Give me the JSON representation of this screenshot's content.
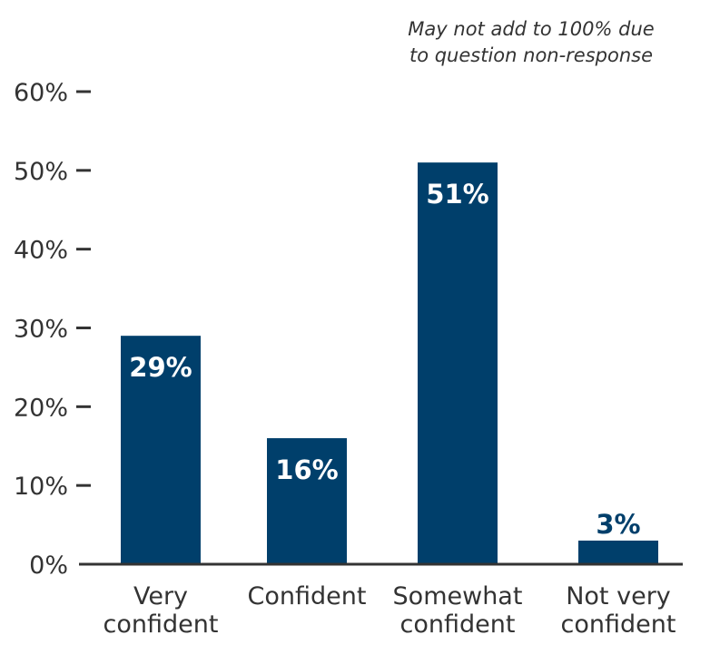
{
  "note": {
    "line1": "May not add to 100% due",
    "line2": "to question non-response"
  },
  "colors": {
    "bar": "#003f6b",
    "axis": "#333333",
    "label_inside": "#ffffff",
    "label_outside": "#003f6b"
  },
  "chart_data": {
    "type": "bar",
    "title": "",
    "xlabel": "",
    "ylabel": "",
    "ylim": [
      0,
      60
    ],
    "yticks": [
      0,
      10,
      20,
      30,
      40,
      50,
      60
    ],
    "ytick_labels": [
      "0%",
      "10%",
      "20%",
      "30%",
      "40%",
      "50%",
      "60%"
    ],
    "categories": [
      [
        "Very",
        "confident"
      ],
      [
        "Confident"
      ],
      [
        "Somewhat",
        "confident"
      ],
      [
        "Not very",
        "confident"
      ]
    ],
    "values": [
      29,
      16,
      51,
      3
    ],
    "value_labels": [
      "29%",
      "16%",
      "51%",
      "3%"
    ],
    "grid": false,
    "legend": "none"
  }
}
